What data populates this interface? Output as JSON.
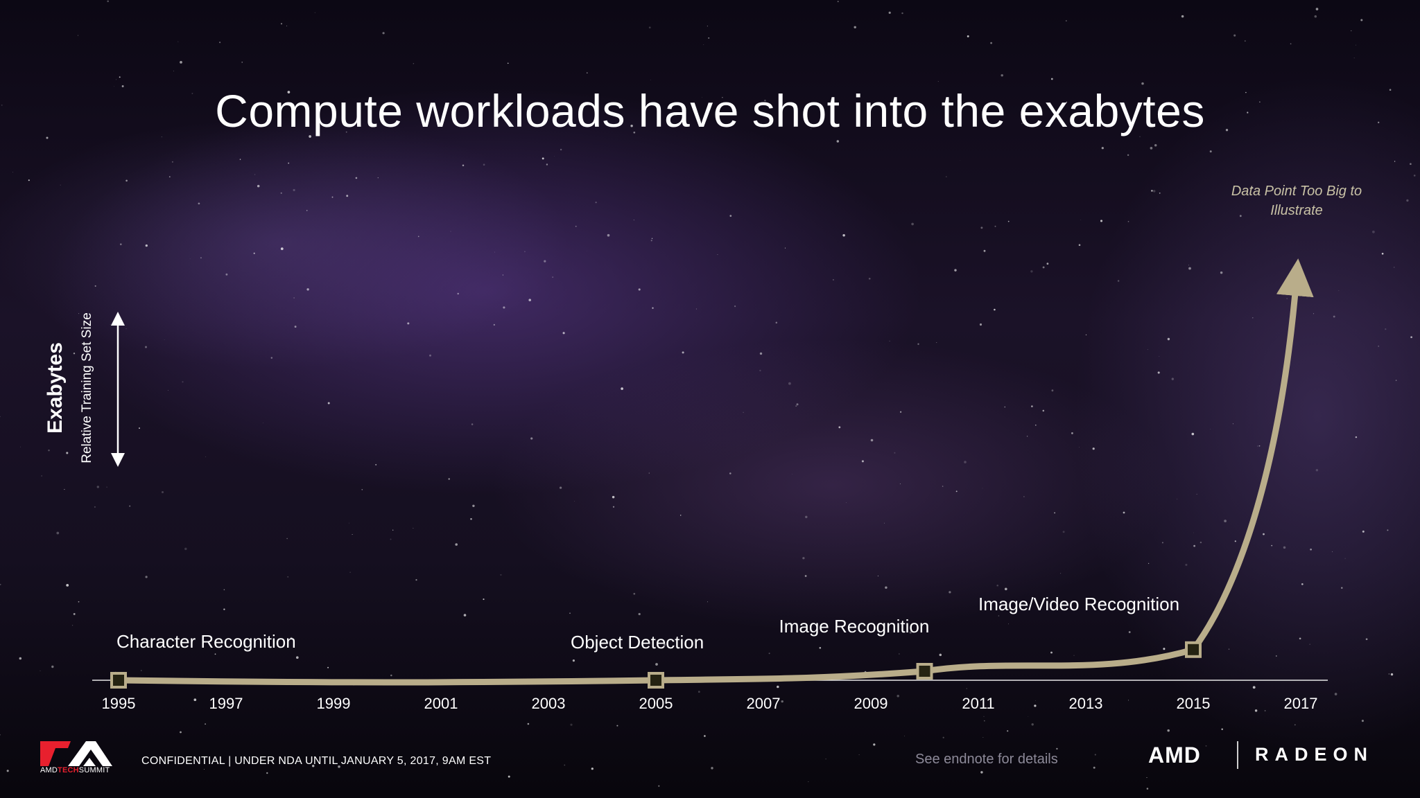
{
  "slide": {
    "title": "Compute workloads have shot into the exabytes",
    "note": "Data Point Too Big to Illustrate",
    "ylabel_main": "Exabytes",
    "ylabel_sub": "Relative Training Set Size",
    "footer_confidential": "CONFIDENTIAL | UNDER NDA UNTIL JANUARY 5, 2017, 9AM EST",
    "footer_endnote": "See endnote for details",
    "logo_prefix": "AMD",
    "logo_tech": "TECH",
    "logo_suffix": "SUMMIT",
    "brand_amd": "AMD",
    "brand_radeon": "RADEON"
  },
  "colors": {
    "curve": "#b9ad8a",
    "marker_fill": "#252312",
    "axis": "#e8e8e8",
    "note": "#c9c2a6",
    "logo_red": "#e8202e"
  },
  "chart_data": {
    "type": "line",
    "xlabel": "",
    "ylabel": "Relative Training Set Size",
    "xlim": [
      1995,
      2017
    ],
    "x_ticks": [
      "1995",
      "1997",
      "1999",
      "2001",
      "2003",
      "2005",
      "2007",
      "2009",
      "2011",
      "2013",
      "2015",
      "2017"
    ],
    "series": [
      {
        "points": [
          {
            "x": 1995,
            "y": 0,
            "label": "Character Recognition"
          },
          {
            "x": 2005,
            "y": 0,
            "label": "Object Detection"
          },
          {
            "x": 2010,
            "y": 5,
            "label": "Image Recognition"
          },
          {
            "x": 2015,
            "y": 17,
            "label": "Image/Video Recognition"
          }
        ],
        "trend_to_arrow": {
          "x": 2017,
          "label": "Data Point Too Big to Illustrate"
        }
      }
    ]
  }
}
